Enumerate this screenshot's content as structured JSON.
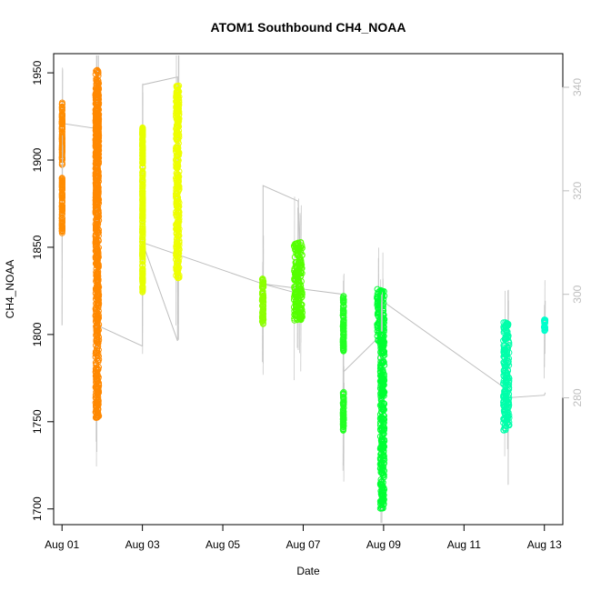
{
  "chart_data": {
    "type": "scatter",
    "title": "ATOM1 Southbound CH4_NOAA",
    "xlabel": "Date",
    "ylabel": "CH4_NOAA",
    "xlim": [
      "2016-07-31T19:00",
      "2016-08-13T11:00"
    ],
    "ylim": [
      1691,
      1961
    ],
    "y2lim": [
      255.5,
      346.5
    ],
    "x_ticks": [
      {
        "date": "2016-08-01",
        "label": "Aug 01"
      },
      {
        "date": "2016-08-03",
        "label": "Aug 03"
      },
      {
        "date": "2016-08-05",
        "label": "Aug 05"
      },
      {
        "date": "2016-08-07",
        "label": "Aug 07"
      },
      {
        "date": "2016-08-09",
        "label": "Aug 09"
      },
      {
        "date": "2016-08-11",
        "label": "Aug 11"
      },
      {
        "date": "2016-08-13",
        "label": "Aug 13"
      }
    ],
    "y_ticks": [
      1700,
      1750,
      1800,
      1850,
      1900,
      1950
    ],
    "y_tick_labels": [
      "1700",
      "1750",
      "1800",
      "1850",
      "1900",
      "1950"
    ],
    "y2_ticks": [
      280,
      300,
      320,
      340
    ],
    "y2_tick_labels": [
      "280",
      "300",
      "320",
      "340"
    ],
    "grid": false,
    "legend": "none",
    "colors": {
      "secondary_series": "#bebebe",
      "axis": "#000000",
      "right_axis": "#bebebe"
    },
    "series": [
      {
        "role": "points",
        "date": "2016-08-01",
        "color": "#ff8c00",
        "clusters": [
          {
            "t_start": "2016-08-01T00:00",
            "t_end": "2016-08-01T00:08",
            "y_lo": 1897,
            "y_hi": 1933
          },
          {
            "t_start": "2016-08-01T00:00",
            "t_end": "2016-08-01T00:08",
            "y_lo": 1858,
            "y_hi": 1890
          }
        ]
      },
      {
        "role": "points",
        "date": "2016-08-01",
        "color": "#ff8800",
        "clusters": [
          {
            "t_start": "2016-08-01T20:00",
            "t_end": "2016-08-01T22:00",
            "y_lo": 1870,
            "y_hi": 1940
          },
          {
            "t_start": "2016-08-01T20:00",
            "t_end": "2016-08-01T22:00",
            "y_lo": 1752,
            "y_hi": 1952
          }
        ]
      },
      {
        "role": "points",
        "date": "2016-08-03",
        "color": "#e6ff00",
        "clusters": [
          {
            "t_start": "2016-08-03T00:00",
            "t_end": "2016-08-03T00:10",
            "y_lo": 1824,
            "y_hi": 1919
          }
        ]
      },
      {
        "role": "points",
        "date": "2016-08-03",
        "color": "#eeff00",
        "clusters": [
          {
            "t_start": "2016-08-03T20:00",
            "t_end": "2016-08-03T22:00",
            "y_lo": 1832,
            "y_hi": 1943
          }
        ]
      },
      {
        "role": "points",
        "date": "2016-08-06",
        "color": "#8cff00",
        "clusters": [
          {
            "t_start": "2016-08-05T23:30",
            "t_end": "2016-08-06T00:15",
            "y_lo": 1806,
            "y_hi": 1832
          }
        ]
      },
      {
        "role": "points",
        "date": "2016-08-06",
        "color": "#55ff00",
        "clusters": [
          {
            "t_start": "2016-08-06T18:30",
            "t_end": "2016-08-06T23:30",
            "y_lo": 1808,
            "y_hi": 1853
          }
        ]
      },
      {
        "role": "points",
        "date": "2016-08-08",
        "color": "#22ff22",
        "clusters": [
          {
            "t_start": "2016-08-07T23:45",
            "t_end": "2016-08-08T00:15",
            "y_lo": 1790,
            "y_hi": 1822
          },
          {
            "t_start": "2016-08-07T23:45",
            "t_end": "2016-08-08T00:15",
            "y_lo": 1745,
            "y_hi": 1767
          }
        ]
      },
      {
        "role": "points",
        "date": "2016-08-08",
        "color": "#00ff33",
        "clusters": [
          {
            "t_start": "2016-08-08T20:00",
            "t_end": "2016-08-09T00:30",
            "y_lo": 1795,
            "y_hi": 1826
          },
          {
            "t_start": "2016-08-08T22:00",
            "t_end": "2016-08-09T00:30",
            "y_lo": 1700,
            "y_hi": 1800
          }
        ]
      },
      {
        "role": "points",
        "date": "2016-08-12",
        "color": "#00ffaa",
        "clusters": [
          {
            "t_start": "2016-08-11T23:30",
            "t_end": "2016-08-12T03:00",
            "y_lo": 1745,
            "y_hi": 1807
          }
        ]
      },
      {
        "role": "points",
        "date": "2016-08-13",
        "color": "#00ffcc",
        "clusters": [
          {
            "t_start": "2016-08-12T23:45",
            "t_end": "2016-08-13T00:30",
            "y_lo": 1801,
            "y_hi": 1809
          }
        ]
      },
      {
        "role": "secondary-line",
        "axis": "right",
        "color": "#bebebe",
        "x": [
          "2016-08-01T00:00",
          "2016-08-01T00:05",
          "2016-08-01T00:08",
          "2016-08-01T21:00",
          "2016-08-01T21:00",
          "2016-08-03T00:00",
          "2016-08-03T00:05",
          "2016-08-03T21:00",
          "2016-08-03T21:00",
          "2016-08-03T00:05",
          "2016-08-06T00:00",
          "2016-08-06T00:00",
          "2016-08-06T21:00",
          "2016-08-06T23:00",
          "2016-08-06T00:00",
          "2016-08-08T00:00",
          "2016-08-08T00:00",
          "2016-08-08T22:00",
          "2016-08-08T22:00",
          "2016-08-12T00:00",
          "2016-08-12T02:00",
          "2016-08-12T02:00",
          "2016-08-13T00:00",
          "2016-08-13T00:30"
        ],
        "y": [
          294.0,
          333.0,
          333.0,
          332.0,
          294.0,
          290.0,
          340.5,
          342.0,
          291.0,
          310.0,
          302.0,
          321.0,
          318.0,
          300.0,
          302.0,
          300.0,
          285.0,
          292.0,
          299.0,
          282.0,
          281.0,
          280.0,
          280.5,
          281.0
        ]
      }
    ]
  }
}
